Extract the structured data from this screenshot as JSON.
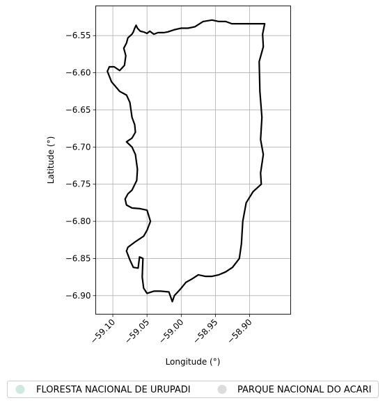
{
  "chart_data": {
    "type": "map",
    "xlabel": "Longitude (°)",
    "ylabel": "Latitude (°)",
    "xlim": [
      -59.125,
      -58.84
    ],
    "ylim": [
      -6.925,
      -6.51
    ],
    "grid": true,
    "x_ticks": [
      -59.1,
      -59.05,
      -59.0,
      -58.95,
      -58.9
    ],
    "x_tick_labels": [
      "−59.10",
      "−59.05",
      "−59.00",
      "−58.95",
      "−58.90"
    ],
    "y_ticks": [
      -6.55,
      -6.6,
      -6.65,
      -6.7,
      -6.75,
      -6.8,
      -6.85,
      -6.9
    ],
    "y_tick_labels": [
      "−6.55",
      "−6.60",
      "−6.65",
      "−6.70",
      "−6.75",
      "−6.80",
      "−6.85",
      "−6.90"
    ],
    "legend_placement": "bottom",
    "boundary_color": "#000000",
    "legend": [
      {
        "label": "FLORESTA NACIONAL DE URUPADI",
        "color": "#cdeade"
      },
      {
        "label": "PARQUE NACIONAL DO ACARI",
        "color": "#dcdcdc"
      }
    ],
    "boundary": [
      [
        -59.084,
        -6.567
      ],
      [
        -59.08,
        -6.56
      ],
      [
        -59.078,
        -6.553
      ],
      [
        -59.072,
        -6.548
      ],
      [
        -59.07,
        -6.545
      ],
      [
        -59.068,
        -6.54
      ],
      [
        -59.066,
        -6.536
      ],
      [
        -59.064,
        -6.54
      ],
      [
        -59.06,
        -6.544
      ],
      [
        -59.055,
        -6.545
      ],
      [
        -59.05,
        -6.547
      ],
      [
        -59.046,
        -6.544
      ],
      [
        -59.04,
        -6.548
      ],
      [
        -59.034,
        -6.546
      ],
      [
        -59.026,
        -6.546
      ],
      [
        -59.02,
        -6.545
      ],
      [
        -59.01,
        -6.542
      ],
      [
        -59.0,
        -6.54
      ],
      [
        -58.99,
        -6.54
      ],
      [
        -58.98,
        -6.538
      ],
      [
        -58.968,
        -6.531
      ],
      [
        -58.955,
        -6.529
      ],
      [
        -58.945,
        -6.531
      ],
      [
        -58.935,
        -6.531
      ],
      [
        -58.926,
        -6.534
      ],
      [
        -58.918,
        -6.534
      ],
      [
        -58.908,
        -6.534
      ],
      [
        -58.896,
        -6.534
      ],
      [
        -58.885,
        -6.534
      ],
      [
        -58.878,
        -6.534
      ],
      [
        -58.881,
        -6.548
      ],
      [
        -58.88,
        -6.565
      ],
      [
        -58.886,
        -6.585
      ],
      [
        -58.885,
        -6.625
      ],
      [
        -58.882,
        -6.66
      ],
      [
        -58.884,
        -6.69
      ],
      [
        -58.88,
        -6.71
      ],
      [
        -58.884,
        -6.735
      ],
      [
        -58.883,
        -6.75
      ],
      [
        -58.895,
        -6.76
      ],
      [
        -58.905,
        -6.775
      ],
      [
        -58.91,
        -6.8
      ],
      [
        -58.912,
        -6.83
      ],
      [
        -58.915,
        -6.85
      ],
      [
        -58.925,
        -6.862
      ],
      [
        -58.935,
        -6.868
      ],
      [
        -58.945,
        -6.872
      ],
      [
        -58.955,
        -6.874
      ],
      [
        -58.965,
        -6.874
      ],
      [
        -58.975,
        -6.872
      ],
      [
        -58.985,
        -6.878
      ],
      [
        -58.993,
        -6.882
      ],
      [
        -59.0,
        -6.89
      ],
      [
        -59.005,
        -6.895
      ],
      [
        -59.01,
        -6.9
      ],
      [
        -59.013,
        -6.908
      ],
      [
        -59.018,
        -6.895
      ],
      [
        -59.03,
        -6.894
      ],
      [
        -59.04,
        -6.894
      ],
      [
        -59.05,
        -6.897
      ],
      [
        -59.055,
        -6.89
      ],
      [
        -59.057,
        -6.875
      ],
      [
        -59.056,
        -6.85
      ],
      [
        -59.061,
        -6.848
      ],
      [
        -59.063,
        -6.863
      ],
      [
        -59.07,
        -6.862
      ],
      [
        -59.075,
        -6.852
      ],
      [
        -59.08,
        -6.84
      ],
      [
        -59.078,
        -6.835
      ],
      [
        -59.068,
        -6.828
      ],
      [
        -59.055,
        -6.82
      ],
      [
        -59.05,
        -6.812
      ],
      [
        -59.045,
        -6.8
      ],
      [
        -59.05,
        -6.785
      ],
      [
        -59.06,
        -6.783
      ],
      [
        -59.072,
        -6.782
      ],
      [
        -59.08,
        -6.778
      ],
      [
        -59.082,
        -6.77
      ],
      [
        -59.078,
        -6.763
      ],
      [
        -59.072,
        -6.758
      ],
      [
        -59.065,
        -6.745
      ],
      [
        -59.064,
        -6.73
      ],
      [
        -59.067,
        -6.71
      ],
      [
        -59.072,
        -6.7
      ],
      [
        -59.08,
        -6.693
      ],
      [
        -59.072,
        -6.688
      ],
      [
        -59.067,
        -6.68
      ],
      [
        -59.068,
        -6.67
      ],
      [
        -59.072,
        -6.66
      ],
      [
        -59.075,
        -6.64
      ],
      [
        -59.08,
        -6.63
      ],
      [
        -59.09,
        -6.625
      ],
      [
        -59.102,
        -6.612
      ],
      [
        -59.108,
        -6.598
      ],
      [
        -59.105,
        -6.592
      ],
      [
        -59.098,
        -6.592
      ],
      [
        -59.09,
        -6.597
      ],
      [
        -59.083,
        -6.59
      ],
      [
        -59.081,
        -6.577
      ],
      [
        -59.084,
        -6.567
      ]
    ]
  }
}
